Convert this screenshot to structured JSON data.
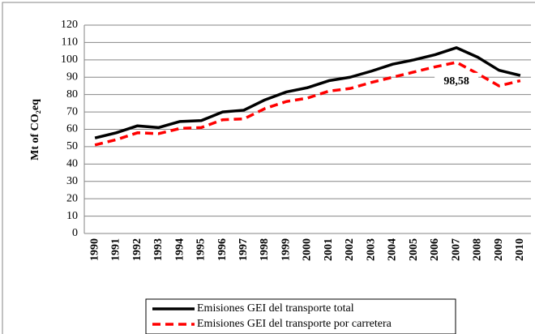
{
  "chart_data": {
    "type": "line",
    "y_label": "Mt of CO₂eq",
    "categories": [
      "1990",
      "1991",
      "1992",
      "1993",
      "1994",
      "1995",
      "1996",
      "1997",
      "1998",
      "1999",
      "2000",
      "2001",
      "2002",
      "2003",
      "2004",
      "2005",
      "2006",
      "2007",
      "2008",
      "2009",
      "2010"
    ],
    "series": [
      {
        "name": "Emisiones GEI del transporte total",
        "color": "#000000",
        "dash": false,
        "values": [
          55,
          58,
          62,
          61,
          64.5,
          65,
          70,
          71,
          77,
          81.5,
          84,
          88,
          90,
          93.5,
          97.5,
          100,
          103,
          107,
          101.5,
          94,
          91
        ]
      },
      {
        "name": "Emisiones GEI del transporte por carretera",
        "color": "#ff0000",
        "dash": true,
        "values": [
          51,
          54,
          58,
          57.5,
          60.5,
          61,
          65.5,
          66,
          72,
          76,
          78,
          82,
          83.5,
          87,
          90,
          93,
          96,
          98.58,
          92,
          85,
          88
        ],
        "value_labels": [
          null,
          null,
          null,
          null,
          null,
          null,
          null,
          null,
          null,
          null,
          null,
          null,
          null,
          null,
          null,
          null,
          null,
          "98,58",
          null,
          null,
          null
        ]
      }
    ],
    "ylim": [
      0,
      120
    ],
    "yticks": [
      0,
      10,
      20,
      30,
      40,
      50,
      60,
      70,
      80,
      90,
      100,
      110,
      120
    ],
    "grid": true
  }
}
